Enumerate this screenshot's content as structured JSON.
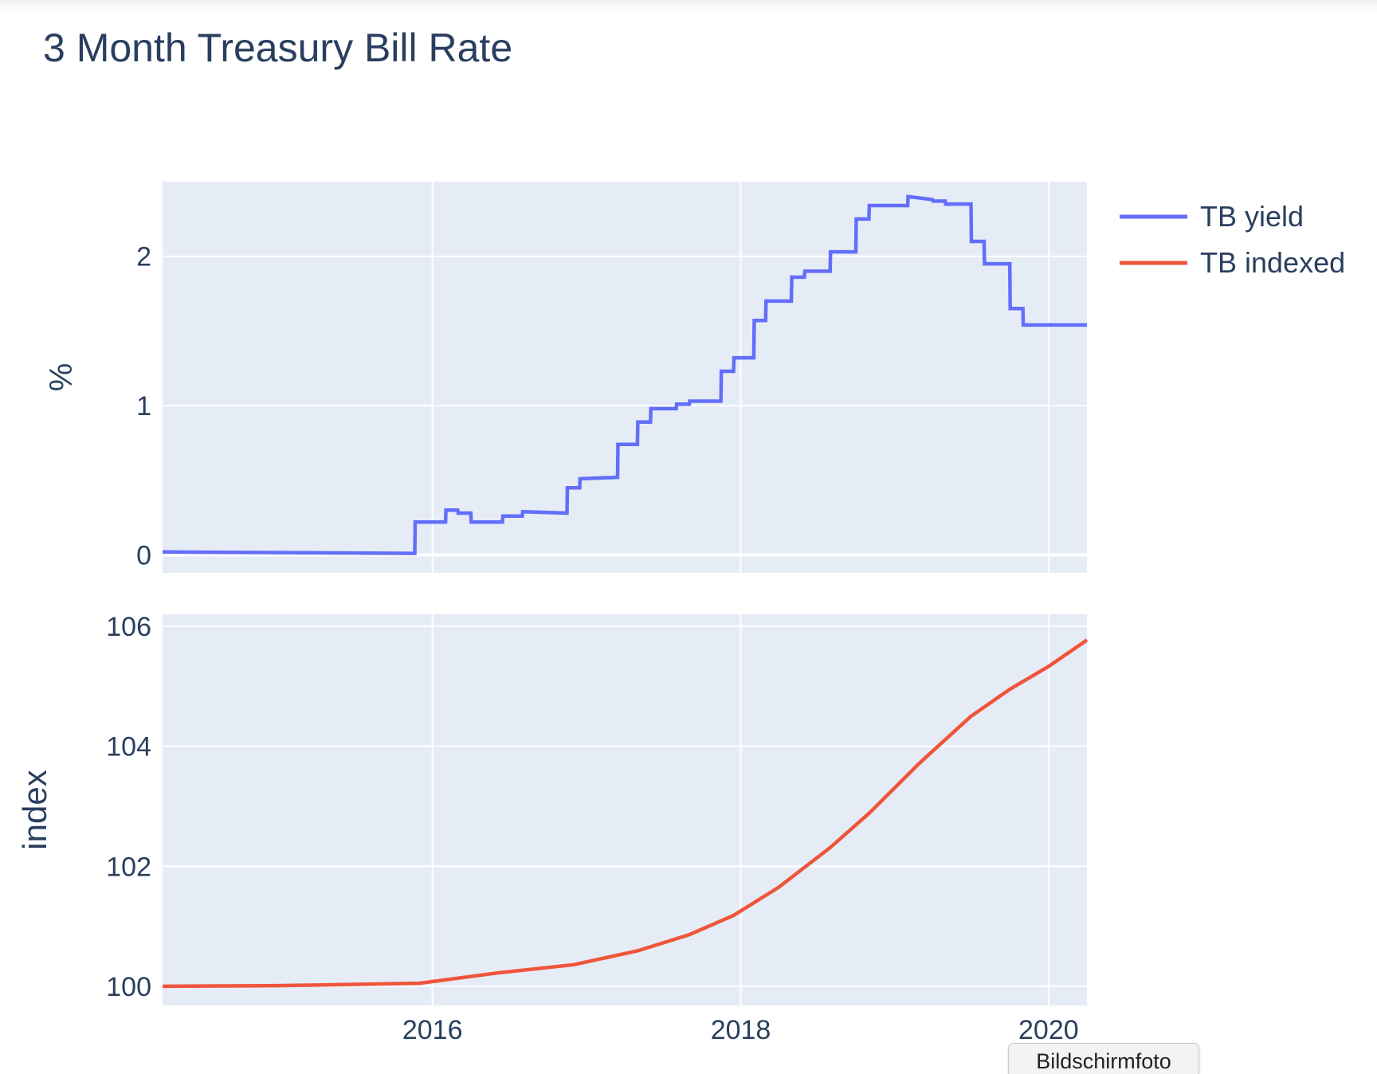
{
  "chart_data": {
    "type": "line",
    "title": "3 Month Treasury Bill Rate",
    "x_range": [
      "2014-04-01",
      "2020-04-01"
    ],
    "x_ticks": [
      "2016",
      "2018",
      "2020"
    ],
    "grid": true,
    "legend_position": "top-right",
    "panels": [
      {
        "ylabel": "%",
        "ylim": [
          -0.12,
          2.5
        ],
        "yticks": [
          "0",
          "1",
          "2"
        ],
        "series": [
          {
            "name": "TB yield",
            "color": "#636efa",
            "shape": "step",
            "x": [
              "2014-04-01",
              "2015-11-20",
              "2015-11-21",
              "2016-02-01",
              "2016-02-02",
              "2016-03-01",
              "2016-03-02",
              "2016-04-01",
              "2016-04-02",
              "2016-06-15",
              "2016-06-16",
              "2016-08-01",
              "2016-08-02",
              "2016-11-15",
              "2016-11-16",
              "2016-12-15",
              "2016-12-16",
              "2017-03-15",
              "2017-03-16",
              "2017-05-01",
              "2017-05-02",
              "2017-06-01",
              "2017-06-02",
              "2017-08-01",
              "2017-08-02",
              "2017-09-01",
              "2017-09-02",
              "2017-11-15",
              "2017-11-16",
              "2017-12-15",
              "2017-12-16",
              "2018-02-01",
              "2018-02-02",
              "2018-03-01",
              "2018-03-02",
              "2018-05-01",
              "2018-05-02",
              "2018-06-01",
              "2018-06-02",
              "2018-08-01",
              "2018-08-02",
              "2018-10-01",
              "2018-10-02",
              "2018-11-01",
              "2018-11-02",
              "2019-02-01",
              "2019-02-02",
              "2019-04-01",
              "2019-04-02",
              "2019-05-01",
              "2019-05-02",
              "2019-07-01",
              "2019-07-02",
              "2019-08-01",
              "2019-08-02",
              "2019-10-01",
              "2019-10-02",
              "2019-11-01",
              "2019-11-02",
              "2020-04-01"
            ],
            "y": [
              0.02,
              0.01,
              0.22,
              0.22,
              0.3,
              0.3,
              0.28,
              0.28,
              0.22,
              0.22,
              0.26,
              0.26,
              0.29,
              0.28,
              0.45,
              0.45,
              0.51,
              0.52,
              0.74,
              0.74,
              0.89,
              0.89,
              0.98,
              0.98,
              1.01,
              1.01,
              1.03,
              1.03,
              1.23,
              1.23,
              1.32,
              1.32,
              1.57,
              1.57,
              1.7,
              1.7,
              1.86,
              1.86,
              1.9,
              1.9,
              2.03,
              2.03,
              2.25,
              2.25,
              2.34,
              2.34,
              2.4,
              2.38,
              2.37,
              2.37,
              2.35,
              2.35,
              2.1,
              2.1,
              1.95,
              1.95,
              1.65,
              1.65,
              1.54,
              1.54
            ]
          }
        ]
      },
      {
        "ylabel": "index",
        "ylim": [
          99.68,
          106.2
        ],
        "yticks": [
          "100",
          "102",
          "104",
          "106"
        ],
        "series": [
          {
            "name": "TB indexed",
            "color": "#ef553b",
            "shape": "linear",
            "x": [
              "2014-04-01",
              "2015-01-01",
              "2015-12-01",
              "2016-06-01",
              "2016-12-01",
              "2017-05-01",
              "2017-09-01",
              "2017-12-15",
              "2018-04-01",
              "2018-08-01",
              "2018-11-01",
              "2019-03-01",
              "2019-07-01",
              "2019-10-01",
              "2020-01-01",
              "2020-04-01"
            ],
            "y": [
              100.0,
              100.01,
              100.05,
              100.22,
              100.36,
              100.59,
              100.86,
              101.18,
              101.65,
              102.31,
              102.88,
              103.72,
              104.5,
              104.95,
              105.33,
              105.77
            ]
          }
        ]
      }
    ]
  },
  "tooltip": {
    "label": "Bildschirmfoto"
  }
}
